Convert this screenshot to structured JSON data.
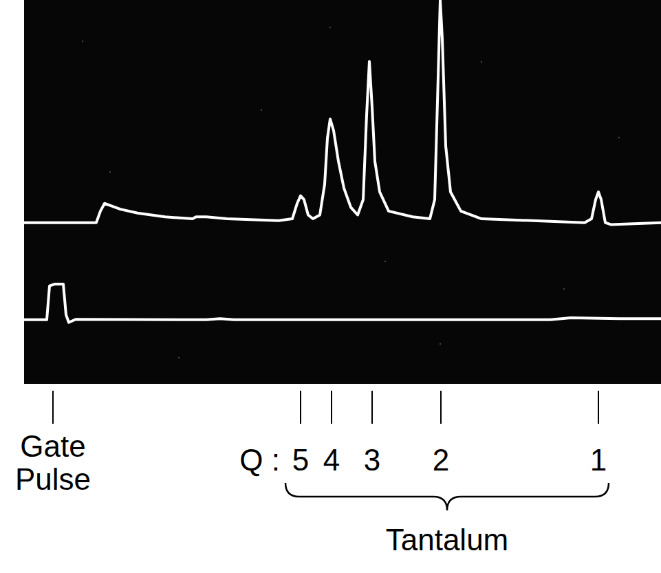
{
  "chart_data": {
    "type": "line",
    "tick_labels": false,
    "xlim": [
      35,
      961
    ],
    "ylim": [
      0,
      100
    ],
    "series": [
      {
        "color": "#ffffff",
        "x": [
          35,
          140,
          146,
          152,
          160,
          175,
          200,
          240,
          280,
          285,
          300,
          330,
          405,
          425,
          432,
          437,
          442,
          448,
          455,
          465,
          472,
          476,
          480,
          485,
          492,
          500,
          510,
          520,
          528,
          533,
          537,
          541,
          545,
          552,
          565,
          600,
          625,
          632,
          637,
          640,
          643,
          648,
          655,
          670,
          700,
          850,
          860,
          866,
          870,
          874,
          880,
          888,
          961
        ],
        "values": [
          42,
          42,
          45,
          47,
          46.5,
          45.5,
          44.5,
          43.5,
          43,
          43.5,
          43.5,
          43,
          42.5,
          43,
          47,
          49,
          48,
          44,
          43,
          44,
          52,
          64,
          69,
          66,
          58,
          51,
          46,
          44,
          48,
          70,
          84,
          72,
          58,
          50,
          45,
          43.5,
          43,
          48,
          80,
          100,
          90,
          62,
          50,
          45,
          43,
          42,
          43,
          48,
          50,
          48,
          42,
          41.5,
          42
        ]
      },
      {
        "color": "#ffffff",
        "x": [
          35,
          68,
          72,
          80,
          92,
          96,
          100,
          110,
          300,
          320,
          340,
          800,
          830,
          900,
          961
        ],
        "values": [
          16.7,
          16.7,
          25.5,
          26,
          26,
          18,
          16,
          16.8,
          16.7,
          17,
          16.7,
          16.7,
          17.2,
          17,
          17
        ]
      }
    ],
    "markers": [
      {
        "x": 77,
        "label": "Gate Pulse"
      }
    ],
    "charge_states": {
      "label": "Q :",
      "peaks": [
        {
          "x": 437,
          "q": 5
        },
        {
          "x": 482,
          "q": 4
        },
        {
          "x": 541,
          "q": 3
        },
        {
          "x": 641,
          "q": 2
        },
        {
          "x": 870,
          "q": 1
        }
      ]
    },
    "group": {
      "label": "Tantalum",
      "x": [
        415,
        885
      ]
    }
  }
}
